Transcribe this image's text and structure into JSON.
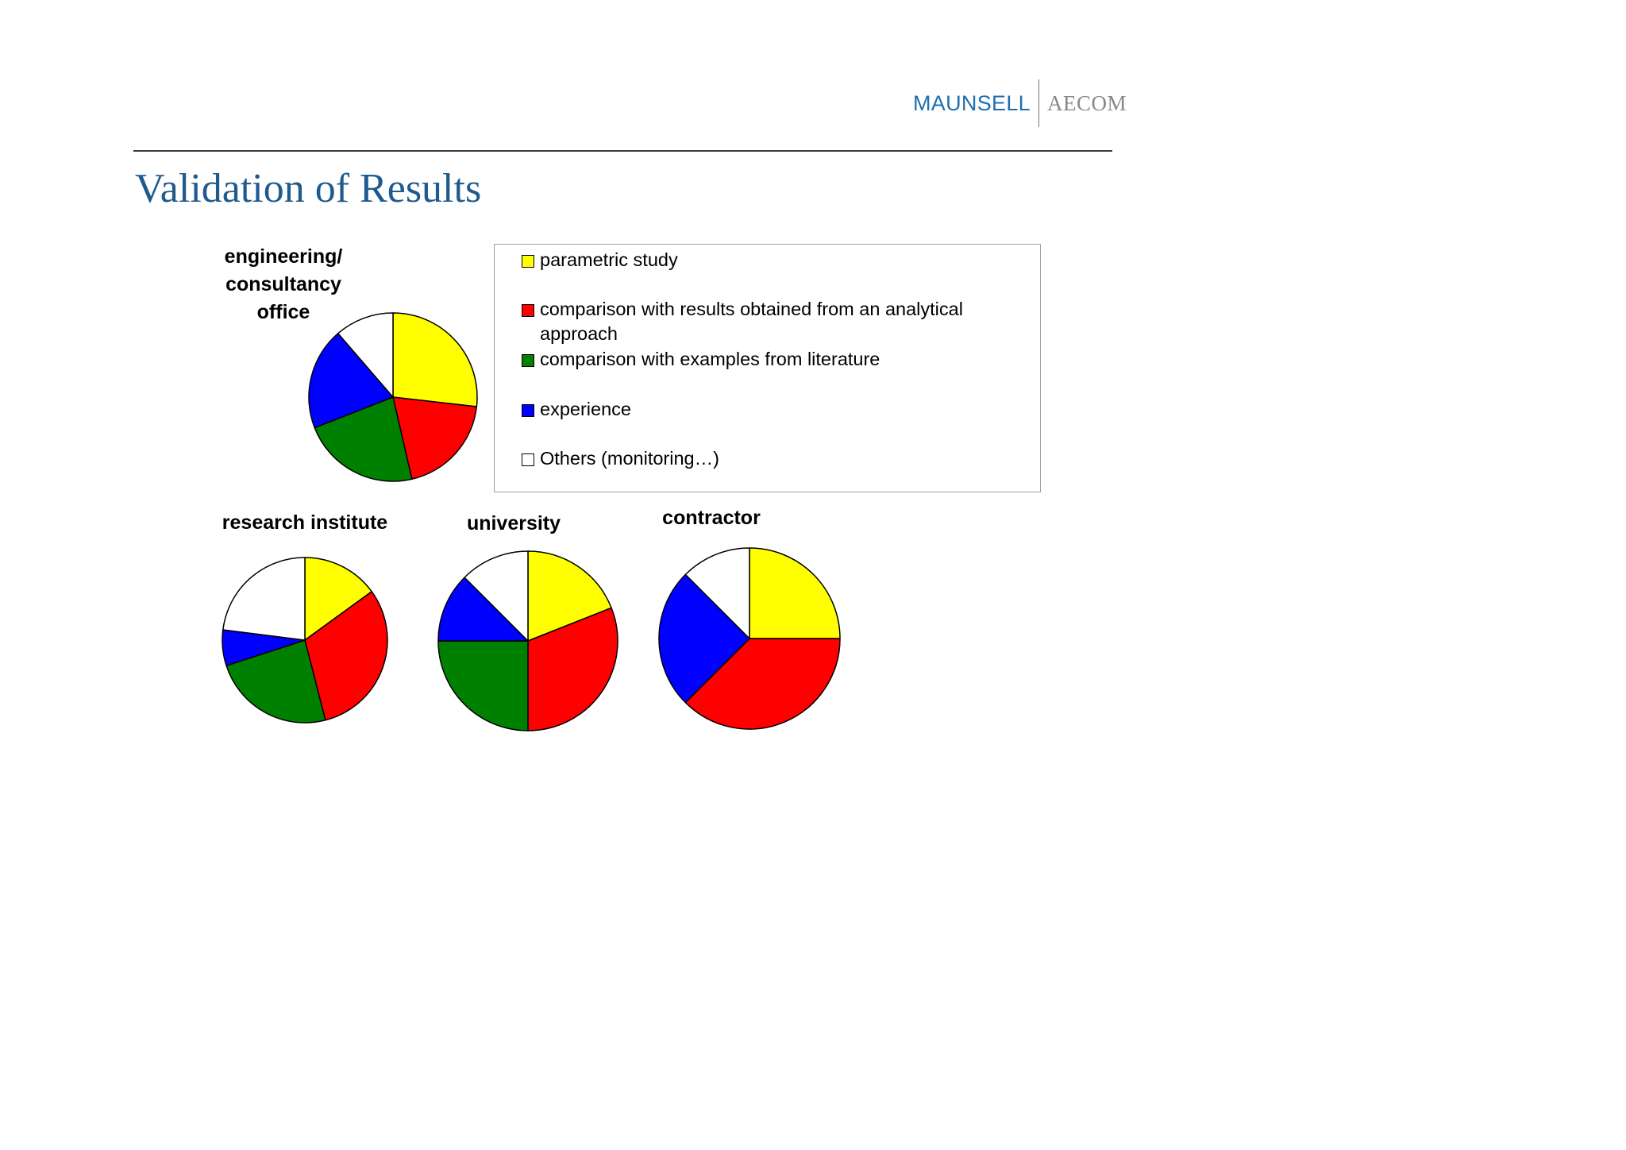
{
  "header": {
    "logo_left": "MAUNSELL",
    "logo_right": "AECOM",
    "logo_left_color": "#1e6fb0",
    "logo_right_color": "#888888"
  },
  "title": "Validation of Results",
  "legend": {
    "items": [
      {
        "label": "parametric study",
        "color": "#ffff00"
      },
      {
        "label": "comparison with results obtained from an analytical approach",
        "color": "#ff0000"
      },
      {
        "label": "comparison with examples from literature",
        "color": "#008000"
      },
      {
        "label": "experience",
        "color": "#0000ff"
      },
      {
        "label": "Others (monitoring…)",
        "color": "#ffffff"
      }
    ]
  },
  "chart_data": [
    {
      "type": "pie",
      "title": "engineering/ consultancy office",
      "slices": [
        {
          "name": "parametric study",
          "value": 26
        },
        {
          "name": "comparison with results obtained from an analytical approach",
          "value": 19
        },
        {
          "name": "comparison with examples from literature",
          "value": 22
        },
        {
          "name": "experience",
          "value": 19
        },
        {
          "name": "Others (monitoring…)",
          "value": 11
        }
      ]
    },
    {
      "type": "pie",
      "title": "research institute",
      "slices": [
        {
          "name": "parametric study",
          "value": 15
        },
        {
          "name": "comparison with results obtained from an analytical approach",
          "value": 31
        },
        {
          "name": "comparison with examples from literature",
          "value": 24
        },
        {
          "name": "experience",
          "value": 7
        },
        {
          "name": "Others (monitoring…)",
          "value": 23
        }
      ]
    },
    {
      "type": "pie",
      "title": "university",
      "slices": [
        {
          "name": "parametric study",
          "value": 19
        },
        {
          "name": "comparison with results obtained from an analytical approach",
          "value": 31
        },
        {
          "name": "comparison with examples from literature",
          "value": 25
        },
        {
          "name": "experience",
          "value": 12.5
        },
        {
          "name": "Others (monitoring…)",
          "value": 12.5
        }
      ]
    },
    {
      "type": "pie",
      "title": "contractor",
      "slices": [
        {
          "name": "parametric study",
          "value": 25
        },
        {
          "name": "comparison with results obtained from an analytical approach",
          "value": 37.5
        },
        {
          "name": "comparison with examples from literature",
          "value": 0
        },
        {
          "name": "experience",
          "value": 25
        },
        {
          "name": "Others (monitoring…)",
          "value": 12.5
        }
      ]
    }
  ]
}
